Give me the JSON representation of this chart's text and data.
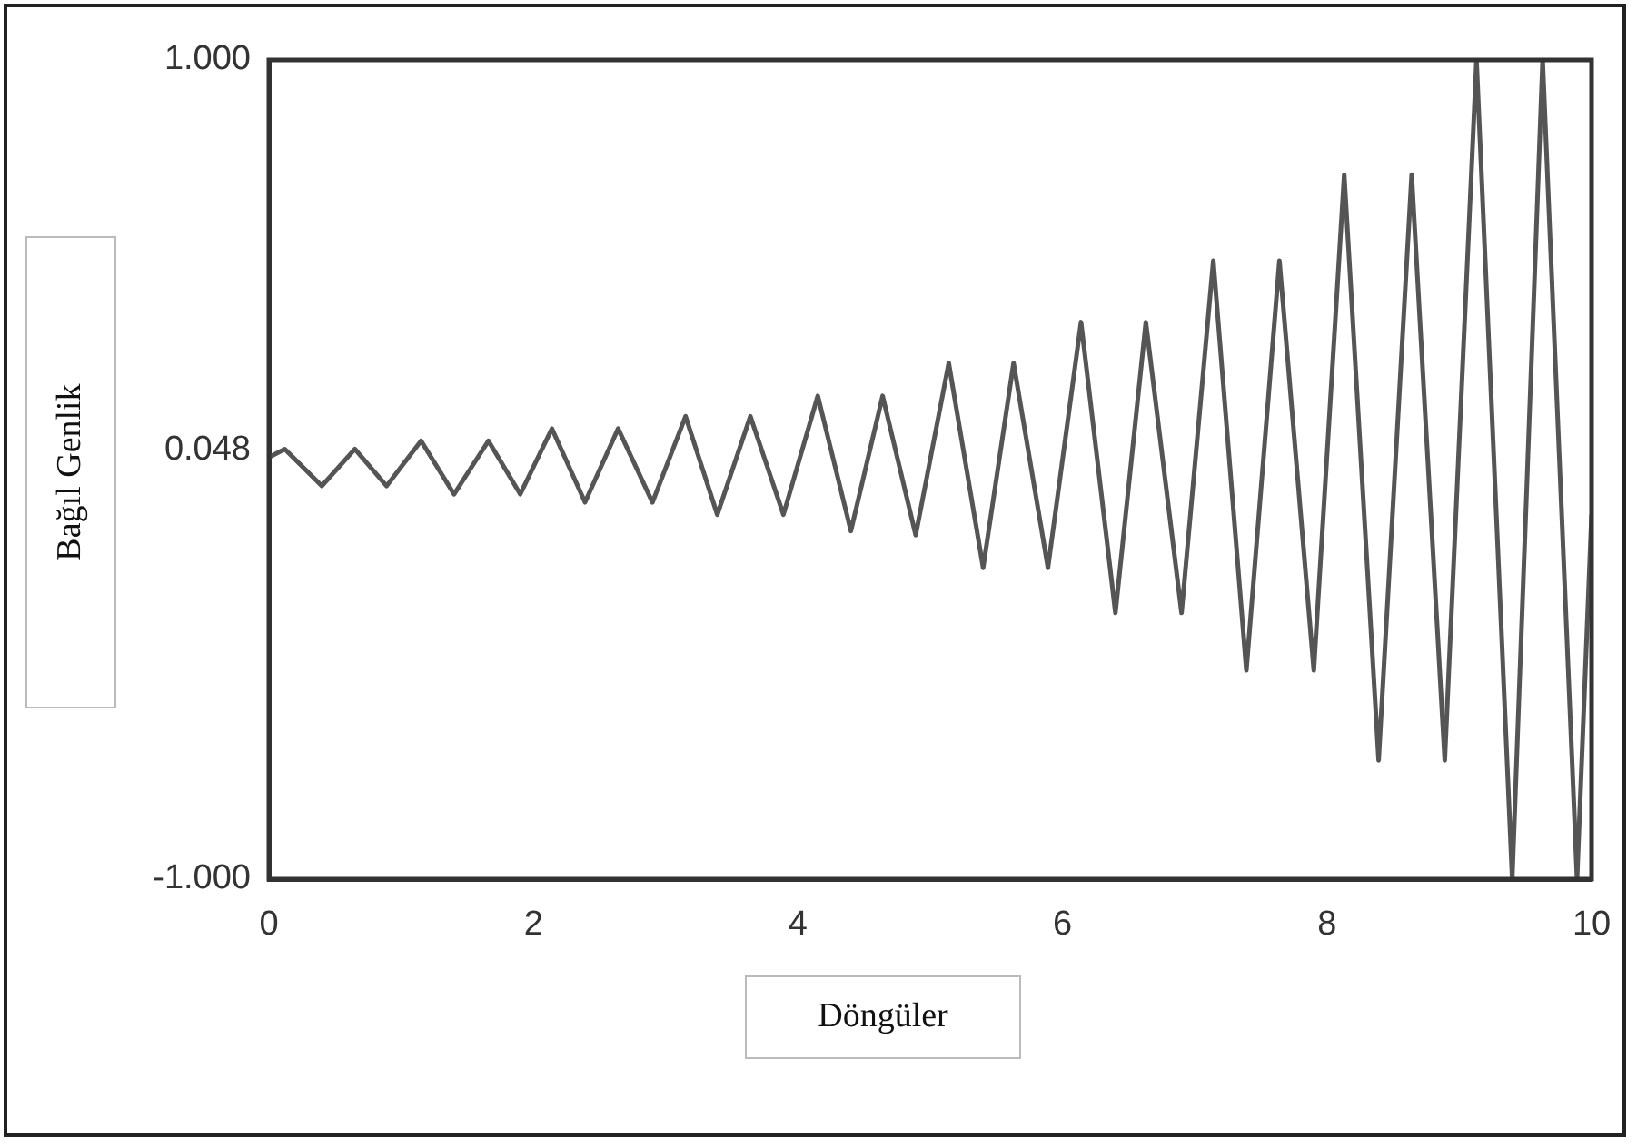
{
  "chart_data": {
    "type": "line",
    "xlabel": "Döngüler",
    "ylabel": "Bağıl Genlik",
    "x": [
      0,
      0.12,
      0.4,
      0.65,
      0.89,
      1.15,
      1.4,
      1.66,
      1.9,
      2.14,
      2.39,
      2.64,
      2.9,
      3.15,
      3.39,
      3.64,
      3.89,
      4.15,
      4.4,
      4.64,
      4.89,
      5.14,
      5.4,
      5.63,
      5.89,
      6.14,
      6.4,
      6.63,
      6.9,
      7.14,
      7.39,
      7.64,
      7.9,
      8.13,
      8.39,
      8.64,
      8.89,
      9.13,
      9.4,
      9.63,
      9.89,
      10
    ],
    "series": [
      {
        "color": "#555555",
        "values": [
          0.03,
          0.05,
          -0.04,
          0.05,
          -0.04,
          0.07,
          -0.06,
          0.07,
          -0.06,
          0.1,
          -0.08,
          0.1,
          -0.08,
          0.13,
          -0.11,
          0.13,
          -0.11,
          0.18,
          -0.15,
          0.18,
          -0.16,
          0.26,
          -0.24,
          0.26,
          -0.24,
          0.36,
          -0.35,
          0.36,
          -0.35,
          0.51,
          -0.49,
          0.51,
          -0.49,
          0.72,
          -0.71,
          0.72,
          -0.71,
          1,
          -1,
          1,
          -1,
          -0.11
        ]
      }
    ],
    "xlim": [
      0,
      10
    ],
    "xticks": [
      0,
      2,
      4,
      6,
      8,
      10
    ],
    "ylim": [
      -1,
      1
    ],
    "yticks": [
      {
        "value": -1,
        "label": "-1.000"
      },
      0.048,
      {
        "value": 1,
        "label": "1.000"
      }
    ],
    "grid": false,
    "legend": false,
    "marker": "none",
    "line_style": "solid"
  }
}
